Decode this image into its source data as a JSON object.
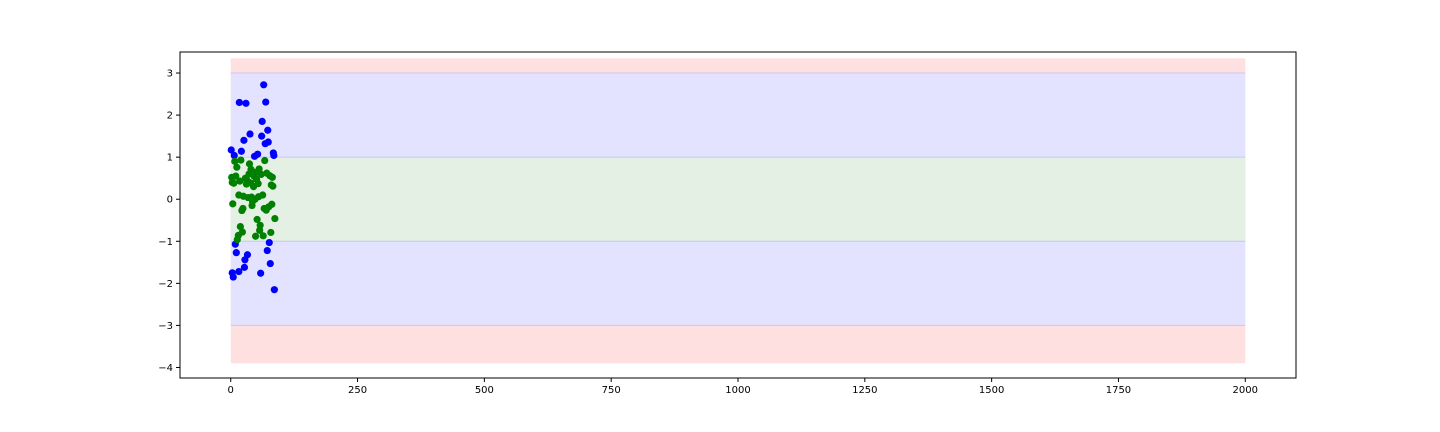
{
  "chart_data": {
    "type": "scatter",
    "xlim": [
      -100,
      2100
    ],
    "ylim": [
      -4.25,
      3.5
    ],
    "x_ticks": [
      0,
      250,
      500,
      750,
      1000,
      1250,
      1500,
      1750,
      2000
    ],
    "y_ticks": [
      -4,
      -3,
      -2,
      -1,
      0,
      1,
      2,
      3
    ],
    "bands": [
      {
        "y0": -3.9,
        "y1": 3.35,
        "x0": 0,
        "x1": 2000,
        "color": "#ffe0e0"
      },
      {
        "y0": -3.0,
        "y1": 3.0,
        "x0": 0,
        "x1": 2000,
        "color": "#e3e3ff"
      },
      {
        "y0": -1.0,
        "y1": 1.0,
        "x0": 0,
        "x1": 2000,
        "color": "#e4f0e4"
      }
    ],
    "band_edge_color": "#c8c8f0",
    "series": [
      {
        "color": "#0000ff",
        "points": [
          [
            1,
            1.17
          ],
          [
            7,
            1.04
          ],
          [
            3,
            -1.75
          ],
          [
            5,
            -1.85
          ],
          [
            11,
            -1.27
          ],
          [
            9,
            -1.07
          ],
          [
            16,
            -1.72
          ],
          [
            17,
            2.3
          ],
          [
            21,
            1.14
          ],
          [
            26,
            1.4
          ],
          [
            30,
            2.28
          ],
          [
            28,
            -1.44
          ],
          [
            33,
            -1.32
          ],
          [
            27,
            -1.62
          ],
          [
            38,
            1.55
          ],
          [
            47,
            1.02
          ],
          [
            53,
            1.07
          ],
          [
            59,
            -1.76
          ],
          [
            62,
            1.85
          ],
          [
            61,
            1.5
          ],
          [
            65,
            2.72
          ],
          [
            69,
            2.31
          ],
          [
            68,
            1.32
          ],
          [
            73,
            1.64
          ],
          [
            74,
            1.36
          ],
          [
            72,
            -1.22
          ],
          [
            76,
            -1.03
          ],
          [
            78,
            -1.53
          ],
          [
            84,
            1.1
          ],
          [
            85,
            1.04
          ],
          [
            86,
            -2.15
          ]
        ]
      },
      {
        "color": "#008000",
        "points": [
          [
            2,
            0.52
          ],
          [
            3,
            0.4
          ],
          [
            4,
            -0.11
          ],
          [
            6,
            0.38
          ],
          [
            8,
            0.9
          ],
          [
            10,
            0.55
          ],
          [
            12,
            0.76
          ],
          [
            13,
            -0.96
          ],
          [
            15,
            -0.86
          ],
          [
            16,
            0.1
          ],
          [
            18,
            0.43
          ],
          [
            20,
            0.93
          ],
          [
            19,
            -0.65
          ],
          [
            22,
            -0.27
          ],
          [
            24,
            -0.22
          ],
          [
            25,
            0.07
          ],
          [
            23,
            -0.78
          ],
          [
            29,
            0.5
          ],
          [
            31,
            0.36
          ],
          [
            32,
            0.45
          ],
          [
            34,
            0.04
          ],
          [
            36,
            0.6
          ],
          [
            37,
            0.84
          ],
          [
            39,
            0.39
          ],
          [
            40,
            0.71
          ],
          [
            41,
            0.05
          ],
          [
            42,
            -0.15
          ],
          [
            43,
            -0.05
          ],
          [
            45,
            0.3
          ],
          [
            46,
            0.55
          ],
          [
            48,
            0.0
          ],
          [
            49,
            -0.88
          ],
          [
            50,
            0.64
          ],
          [
            51,
            0.47
          ],
          [
            52,
            -0.48
          ],
          [
            54,
            0.37
          ],
          [
            55,
            0.06
          ],
          [
            56,
            0.72
          ],
          [
            57,
            -0.74
          ],
          [
            58,
            -0.62
          ],
          [
            60,
            0.59
          ],
          [
            63,
            0.1
          ],
          [
            64,
            -0.87
          ],
          [
            66,
            -0.22
          ],
          [
            67,
            0.92
          ],
          [
            70,
            -0.26
          ],
          [
            71,
            0.62
          ],
          [
            75,
            -0.18
          ],
          [
            77,
            0.56
          ],
          [
            79,
            -0.79
          ],
          [
            80,
            0.34
          ],
          [
            81,
            -0.12
          ],
          [
            82,
            0.52
          ],
          [
            83,
            0.31
          ],
          [
            87,
            -0.46
          ]
        ]
      }
    ]
  }
}
